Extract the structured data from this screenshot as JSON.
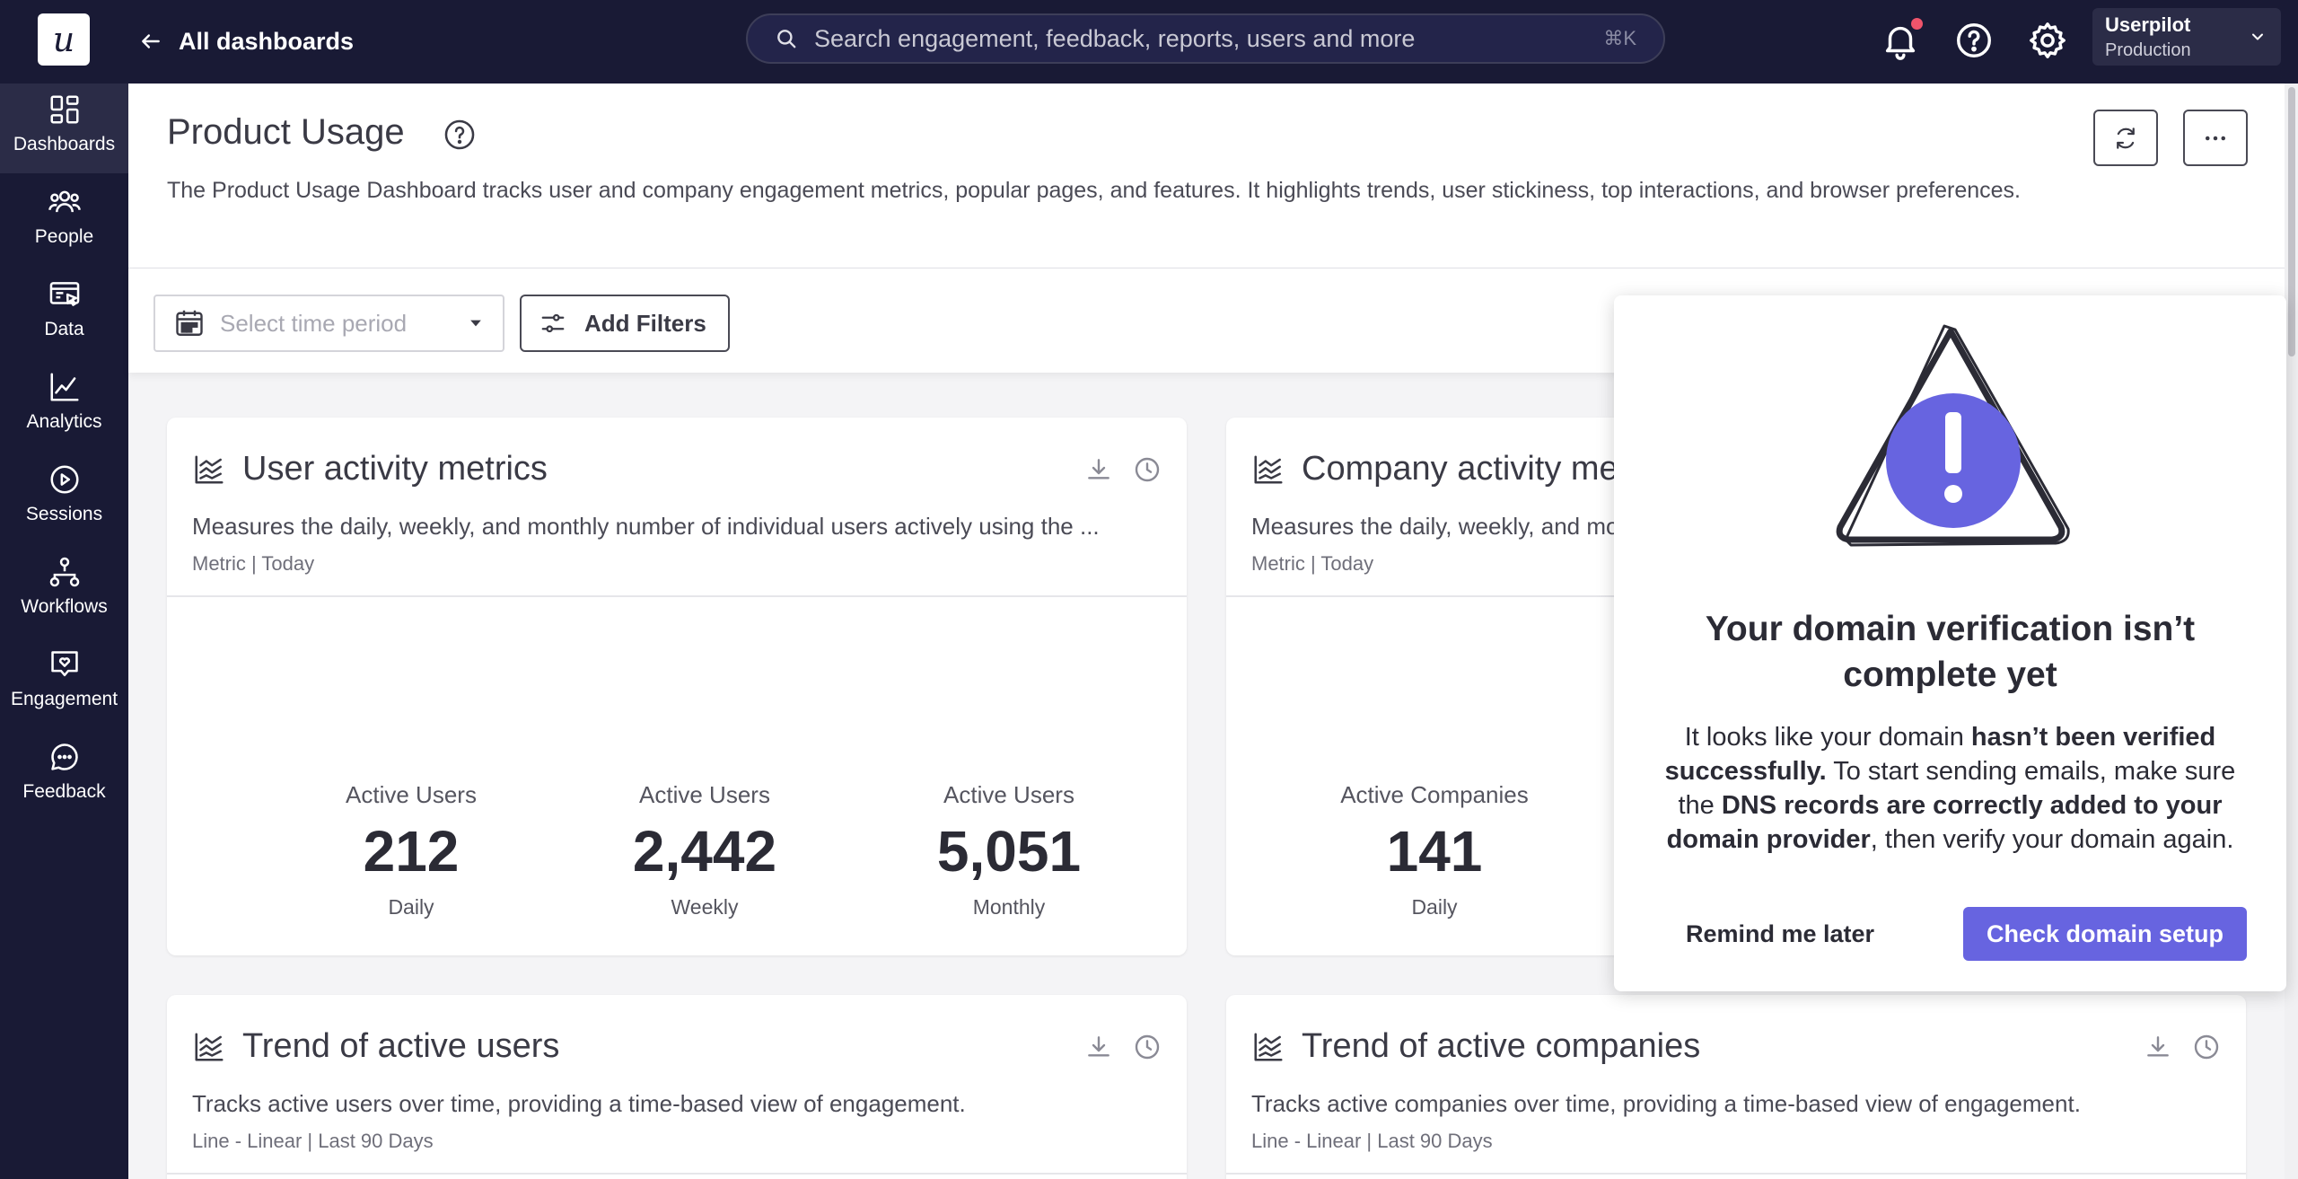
{
  "topbar": {
    "logo_letter": "u",
    "back_label": "All dashboards",
    "search_placeholder": "Search engagement, feedback, reports, users and more",
    "search_shortcut": "⌘K",
    "account_name": "Userpilot",
    "account_env": "Production"
  },
  "sidebar": {
    "items": [
      {
        "label": "Dashboards",
        "icon": "dashboard-icon",
        "active": true
      },
      {
        "label": "People",
        "icon": "people-icon"
      },
      {
        "label": "Data",
        "icon": "data-icon"
      },
      {
        "label": "Analytics",
        "icon": "analytics-icon"
      },
      {
        "label": "Sessions",
        "icon": "play-icon"
      },
      {
        "label": "Workflows",
        "icon": "workflow-icon"
      },
      {
        "label": "Engagement",
        "icon": "engagement-icon"
      },
      {
        "label": "Feedback",
        "icon": "chat-icon"
      }
    ]
  },
  "page": {
    "title": "Product Usage",
    "description": "The Product Usage Dashboard tracks user and company engagement metrics, popular pages, and features. It highlights trends, user stickiness, top interactions, and browser preferences."
  },
  "filters": {
    "period_placeholder": "Select time period",
    "add_filters_label": "Add Filters"
  },
  "cards": {
    "user_activity": {
      "title": "User activity metrics",
      "description": "Measures the daily, weekly, and monthly number of individual users actively using the ...",
      "meta": "Metric | Today",
      "metrics": [
        {
          "label": "Active Users",
          "value": "212",
          "period": "Daily"
        },
        {
          "label": "Active Users",
          "value": "2,442",
          "period": "Weekly"
        },
        {
          "label": "Active Users",
          "value": "5,051",
          "period": "Monthly"
        }
      ]
    },
    "company_activity": {
      "title": "Company activity me",
      "description": "Measures the daily, weekly, and mo",
      "meta": "Metric | Today",
      "metrics": [
        {
          "label": "Active Companies",
          "value": "141",
          "period": "Daily"
        }
      ]
    },
    "trend_users": {
      "title": "Trend of active users",
      "description": "Tracks active users over time, providing a time-based view of engagement.",
      "meta": "Line - Linear | Last 90 Days"
    },
    "trend_companies": {
      "title": "Trend of active companies",
      "description": "Tracks active companies over time, providing a time-based view of engagement.",
      "meta": "Line - Linear | Last 90 Days"
    }
  },
  "modal": {
    "title": "Your domain verification isn’t complete yet",
    "body_1": "It looks like your domain ",
    "body_bold_1": "hasn’t been verified successfully.",
    "body_2": "  To start sending emails, make sure the ",
    "body_bold_2": "DNS records are correctly added to your domain provider",
    "body_3": ", then verify your domain again.",
    "remind_label": "Remind me later",
    "check_label": "Check domain setup"
  },
  "colors": {
    "nav_bg": "#191a35",
    "accent": "#6764e0",
    "notification": "#f0546b"
  }
}
